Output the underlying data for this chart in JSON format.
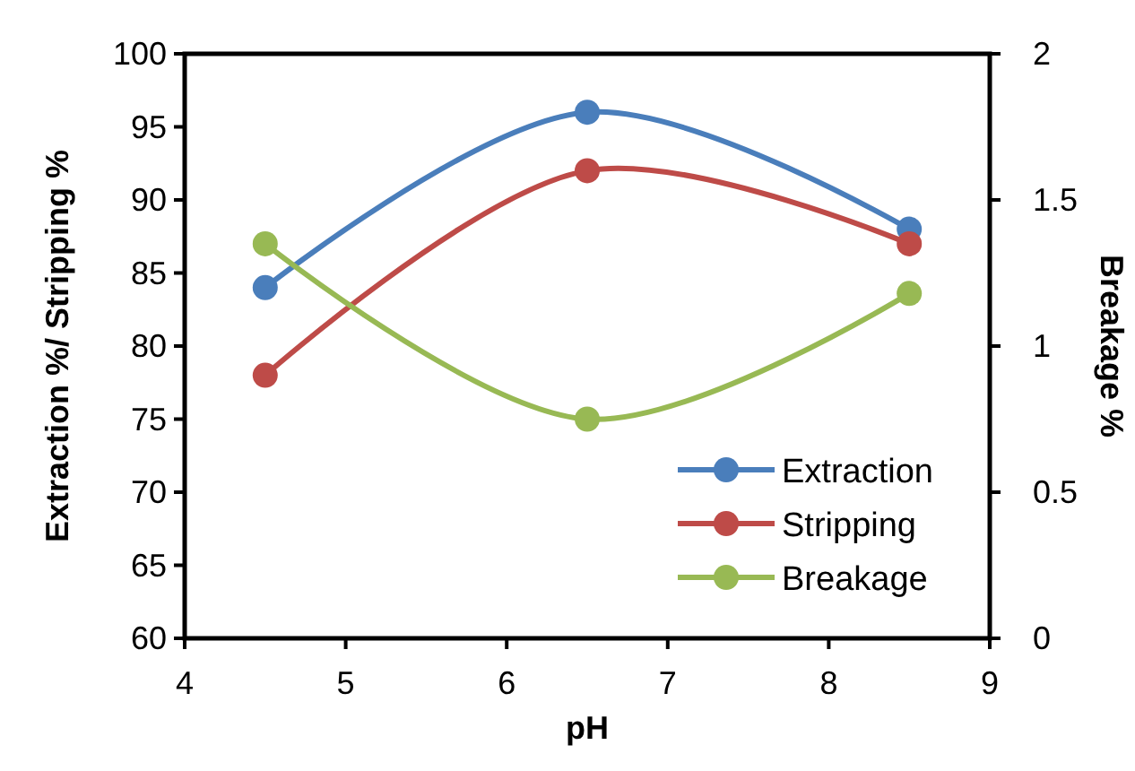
{
  "chart_data": {
    "type": "line",
    "xlabel": "pH",
    "ylabel": "Extraction %/ Stripping %",
    "y2label": "Breakage %",
    "series": [
      {
        "name": "Extraction",
        "color": "#4a7ebb",
        "x": [
          4.5,
          6.5,
          8.5
        ],
        "values": [
          84,
          96,
          88
        ]
      },
      {
        "name": "Stripping",
        "color": "#be4b48",
        "x": [
          4.5,
          6.5,
          8.5
        ],
        "values": [
          78,
          92,
          87
        ]
      },
      {
        "name": "Breakage",
        "color": "#98b954",
        "x": [
          4.5,
          6.5,
          8.5
        ],
        "values": [
          1.35,
          0.75,
          1.18
        ],
        "axis": "y2"
      }
    ],
    "xlim": [
      4,
      9
    ],
    "xticks": [
      4,
      5,
      6,
      7,
      8,
      9
    ],
    "ylim": [
      60,
      100
    ],
    "yticks": [
      60,
      65,
      70,
      75,
      80,
      85,
      90,
      95,
      100
    ],
    "y2lim": [
      0,
      2
    ],
    "y2ticks": [
      0,
      0.5,
      1,
      1.5,
      2
    ],
    "grid": false,
    "legend": "bottom right",
    "marker": "circle",
    "line_style": "solid"
  }
}
